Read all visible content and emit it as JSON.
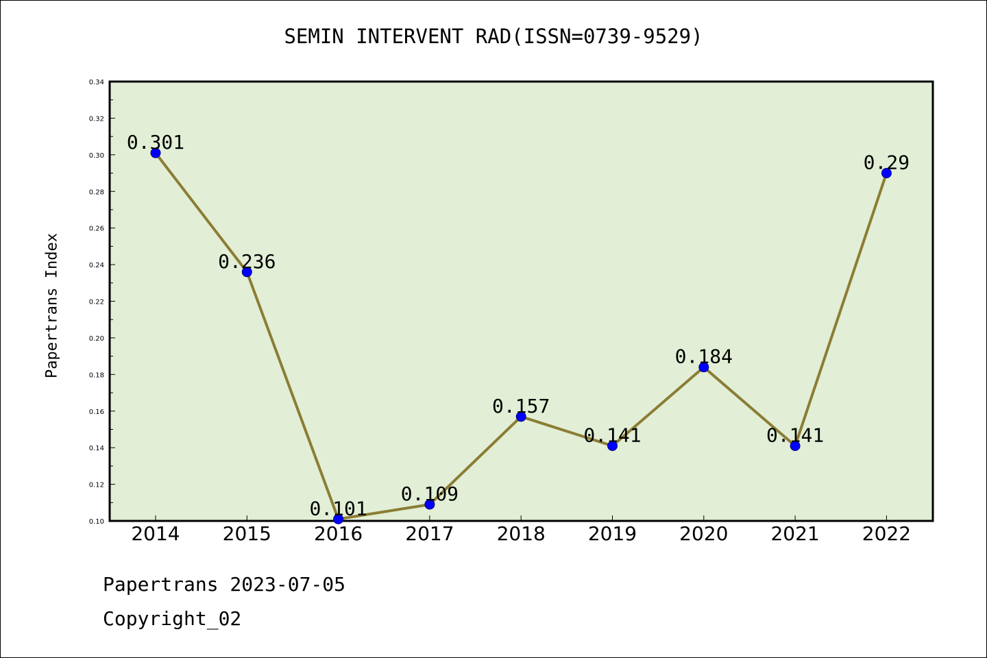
{
  "chart_data": {
    "type": "line",
    "title": "SEMIN INTERVENT RAD(ISSN=0739-9529)",
    "xlabel": "",
    "ylabel": "Papertrans Index",
    "categories": [
      "2014",
      "2015",
      "2016",
      "2017",
      "2018",
      "2019",
      "2020",
      "2021",
      "2022"
    ],
    "values": [
      0.301,
      0.236,
      0.101,
      0.109,
      0.157,
      0.141,
      0.184,
      0.141,
      0.29
    ],
    "data_labels": [
      "0.301",
      "0.236",
      "0.101",
      "0.109",
      "0.157",
      "0.141",
      "0.184",
      "0.141",
      "0.29"
    ],
    "ylim": [
      0.1,
      0.34
    ],
    "yticks": [
      "0.10",
      "0.12",
      "0.14",
      "0.16",
      "0.18",
      "0.20",
      "0.22",
      "0.24",
      "0.26",
      "0.28",
      "0.30",
      "0.32",
      "0.34"
    ],
    "grid": false,
    "legend": "none",
    "colors": {
      "plot_background": "#e2efd6",
      "line": "#8b7d35",
      "marker": "#0000ff",
      "marker_edge": "#000080"
    }
  },
  "footer": {
    "date_text": "Papertrans 2023-07-05",
    "copyright_text": "Copyright_02"
  }
}
